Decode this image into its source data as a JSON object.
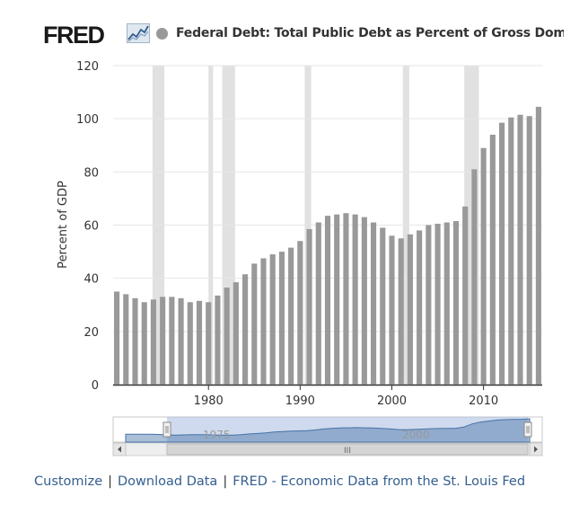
{
  "header": {
    "logo_text": "FRED",
    "series_title": "Federal Debt: Total Public Debt as Percent of Gross Domestic Proc"
  },
  "footer": {
    "customize": "Customize",
    "sep1": "|",
    "download": "Download Data",
    "sep2": "|",
    "source": "FRED - Economic Data from the St. Louis Fed"
  },
  "colors": {
    "bar": "#999999",
    "recession": "#e1e1e1",
    "navigator_fill": "#a7bbe0",
    "navigator_line": "#4572a7"
  },
  "navigator": {
    "tick_labels": [
      "1975",
      "2000"
    ],
    "scrollbar_grip": "III"
  },
  "chart_data": {
    "type": "bar",
    "title": "Federal Debt: Total Public Debt as Percent of Gross Domestic Product",
    "xlabel": "",
    "ylabel": "Percent of GDP",
    "ylim": [
      0,
      120
    ],
    "yticks": [
      0,
      20,
      40,
      60,
      80,
      100,
      120
    ],
    "xticks": [
      1980,
      1990,
      2000,
      2010
    ],
    "x": [
      1970,
      1971,
      1972,
      1973,
      1974,
      1975,
      1976,
      1977,
      1978,
      1979,
      1980,
      1981,
      1982,
      1983,
      1984,
      1985,
      1986,
      1987,
      1988,
      1989,
      1990,
      1991,
      1992,
      1993,
      1994,
      1995,
      1996,
      1997,
      1998,
      1999,
      2000,
      2001,
      2002,
      2003,
      2004,
      2005,
      2006,
      2007,
      2008,
      2009,
      2010,
      2011,
      2012,
      2013,
      2014,
      2015,
      2016
    ],
    "values": [
      35,
      34,
      32.5,
      31,
      32,
      33,
      33,
      32.5,
      31,
      31.5,
      31,
      33.5,
      36.5,
      38.5,
      41.5,
      45.5,
      47.5,
      49,
      50,
      51.5,
      54,
      58.5,
      61,
      63.5,
      64,
      64.5,
      64,
      63,
      61,
      59,
      56,
      55,
      56.5,
      58,
      60,
      60.5,
      61,
      61.5,
      67,
      81,
      89,
      94,
      98.5,
      100.5,
      101.5,
      101,
      104.5
    ],
    "recessions": [
      [
        1973.9,
        1975.2
      ],
      [
        1980.0,
        1980.5
      ],
      [
        1981.5,
        1982.9
      ],
      [
        1990.5,
        1991.2
      ],
      [
        2001.2,
        2001.9
      ],
      [
        2007.9,
        2009.5
      ]
    ],
    "legend": "none"
  }
}
